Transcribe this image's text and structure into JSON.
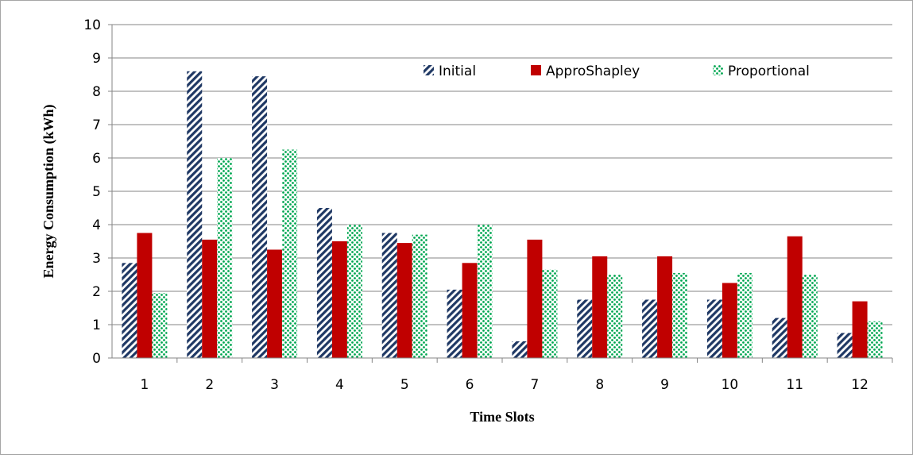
{
  "chart_data": {
    "type": "bar",
    "title": "",
    "xlabel": "Time Slots",
    "ylabel": "Energy Consumption  (kWh)",
    "ylim": [
      0,
      10
    ],
    "yticks": [
      0,
      1,
      2,
      3,
      4,
      5,
      6,
      7,
      8,
      9,
      10
    ],
    "grid": true,
    "legend_position": "top-right",
    "categories": [
      "1",
      "2",
      "3",
      "4",
      "5",
      "6",
      "7",
      "8",
      "9",
      "10",
      "11",
      "12"
    ],
    "series": [
      {
        "name": "Initial",
        "color": "#1f3864",
        "pattern": "diagonal-stripes",
        "values": [
          2.85,
          8.6,
          8.45,
          4.5,
          3.75,
          2.05,
          0.5,
          1.75,
          1.75,
          1.75,
          1.2,
          0.75
        ]
      },
      {
        "name": "ApproShapley",
        "color": "#c00000",
        "pattern": "solid",
        "values": [
          3.75,
          3.55,
          3.25,
          3.5,
          3.45,
          2.85,
          3.55,
          3.05,
          3.05,
          2.25,
          3.65,
          1.7
        ]
      },
      {
        "name": "Proportional",
        "color": "#00a650",
        "pattern": "dots",
        "values": [
          1.95,
          6.0,
          6.25,
          4.0,
          3.7,
          4.0,
          2.65,
          2.5,
          2.55,
          2.55,
          2.5,
          1.1
        ]
      }
    ]
  }
}
